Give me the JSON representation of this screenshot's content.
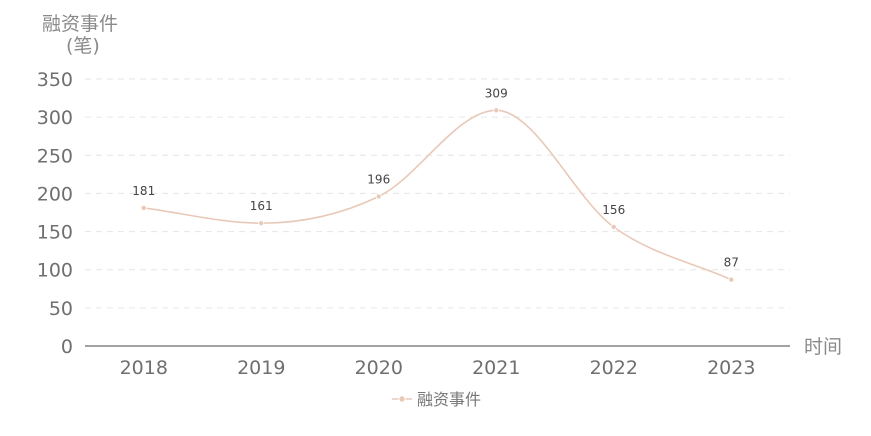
{
  "chart_data": {
    "type": "line",
    "title": "",
    "ylabel": "融资事件\n(笔)",
    "xlabel": "时间",
    "categories": [
      "2018",
      "2019",
      "2020",
      "2021",
      "2022",
      "2023"
    ],
    "series": [
      {
        "name": "融资事件",
        "values": [
          181,
          161,
          196,
          309,
          156,
          87
        ]
      }
    ],
    "ylim": [
      0,
      350
    ],
    "yticks": [
      0,
      50,
      100,
      150,
      200,
      250,
      300,
      350
    ],
    "grid": true,
    "legend": "bottom-center",
    "smooth": true,
    "line_color": "#e8c9b8"
  }
}
